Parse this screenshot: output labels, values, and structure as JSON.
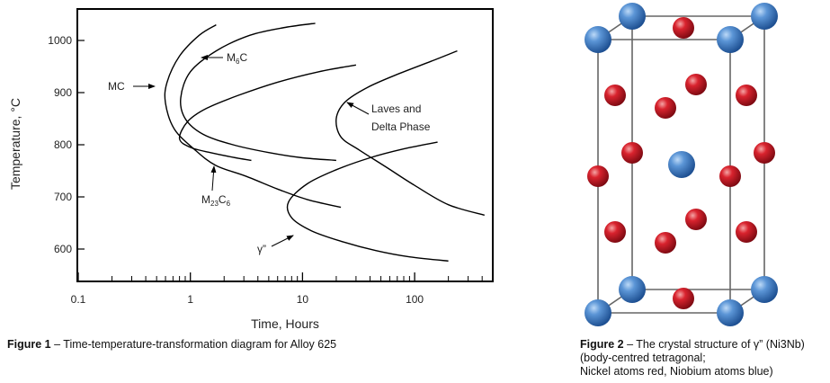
{
  "figure1": {
    "caption_label": "Figure 1",
    "caption_text": " – Time-temperature-transformation diagram for Alloy 625",
    "chart_data": {
      "type": "line",
      "title": "",
      "xlabel": "Time, Hours",
      "ylabel": "Temperature, °C",
      "xscale": "log",
      "xlim": [
        0.1,
        450
      ],
      "ylim": [
        540,
        1060
      ],
      "x_ticks": [
        0.1,
        1,
        10,
        100
      ],
      "x_tick_labels": [
        "0.1",
        "1",
        "10",
        "100"
      ],
      "y_ticks": [
        600,
        700,
        800,
        900,
        1000
      ],
      "y_tick_labels": [
        "600",
        "700",
        "800",
        "900",
        "1000"
      ],
      "grid": false,
      "series": [
        {
          "label_main": "MC",
          "label_sub": "",
          "label_tail": "",
          "points": [
            [
              1.7,
              1030
            ],
            [
              1.2,
              1010
            ],
            [
              0.8,
              970
            ],
            [
              0.62,
              920
            ],
            [
              0.6,
              880
            ],
            [
              0.72,
              830
            ],
            [
              1.1,
              790
            ],
            [
              1.7,
              760
            ],
            [
              3.1,
              740
            ],
            [
              6.0,
              715
            ],
            [
              11,
              695
            ],
            [
              22,
              680
            ]
          ]
        },
        {
          "label_main": "M",
          "label_sub": "6",
          "label_tail": "C",
          "points": [
            [
              13,
              1033
            ],
            [
              7,
              1025
            ],
            [
              3.4,
              1010
            ],
            [
              1.7,
              980
            ],
            [
              1.0,
              940
            ],
            [
              0.82,
              890
            ],
            [
              0.9,
              850
            ],
            [
              1.3,
              820
            ],
            [
              2.4,
              800
            ],
            [
              5,
              785
            ],
            [
              10,
              775
            ],
            [
              20,
              770
            ]
          ]
        },
        {
          "label_main": "M",
          "label_sub": "23",
          "label_tail": "C",
          "label_tail_sub": "6",
          "points": [
            [
              30,
              953
            ],
            [
              14,
              940
            ],
            [
              6,
              920
            ],
            [
              2.7,
              895
            ],
            [
              1.4,
              870
            ],
            [
              0.95,
              845
            ],
            [
              0.8,
              812
            ],
            [
              1.0,
              795
            ],
            [
              1.5,
              785
            ],
            [
              2.4,
              776
            ],
            [
              3.5,
              770
            ]
          ]
        },
        {
          "label_main": "Laves and",
          "label_main2": "Delta Phase",
          "label_sub": "",
          "points": [
            [
              240,
              980
            ],
            [
              140,
              960
            ],
            [
              70,
              935
            ],
            [
              38,
              910
            ],
            [
              24,
              882
            ],
            [
              20,
              850
            ],
            [
              22,
              815
            ],
            [
              32,
              790
            ],
            [
              55,
              758
            ],
            [
              100,
              722
            ],
            [
              200,
              685
            ],
            [
              420,
              665
            ]
          ]
        },
        {
          "label_main": "γ”",
          "label_sub": "",
          "points": [
            [
              160,
              805
            ],
            [
              80,
              792
            ],
            [
              40,
              775
            ],
            [
              20,
              752
            ],
            [
              11,
              725
            ],
            [
              7.5,
              690
            ],
            [
              8,
              660
            ],
            [
              12,
              635
            ],
            [
              22,
              615
            ],
            [
              45,
              597
            ],
            [
              90,
              585
            ],
            [
              200,
              577
            ]
          ]
        }
      ]
    }
  },
  "figure2": {
    "caption_label": "Figure 2",
    "caption_line1": " – The crystal structure of γ” (Ni3Nb)",
    "caption_line2": "(body-centred tetragonal;",
    "caption_line3": "Nickel atoms red, Niobium atoms blue)",
    "colors": {
      "nickel": "#c8102e",
      "niobium": "#3d7dc8",
      "frame": "#555555"
    }
  }
}
